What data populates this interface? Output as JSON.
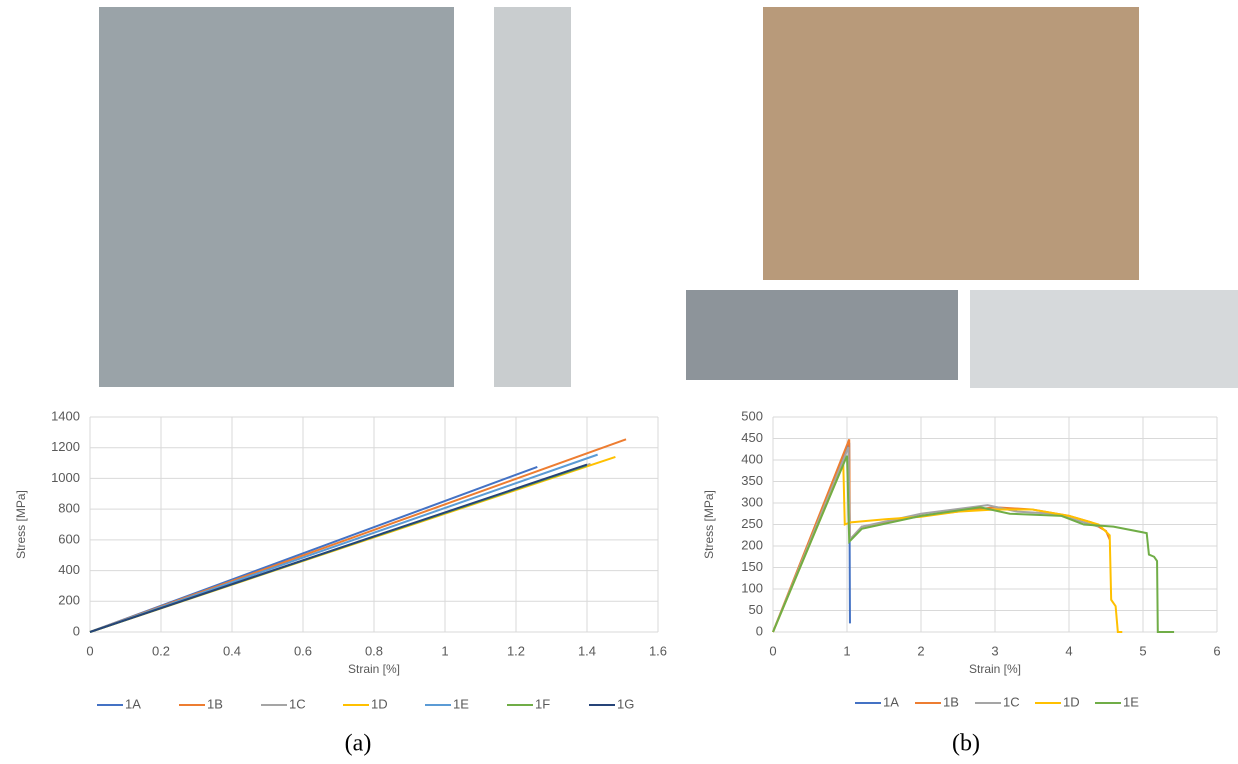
{
  "chart_data": [
    {
      "type": "line",
      "x_label": "Strain [%]",
      "y_label": "Stress [MPa]",
      "xlim": [
        0,
        1.6
      ],
      "xticks": [
        0,
        0.2,
        0.4,
        0.6,
        0.8,
        1,
        1.2,
        1.4,
        1.6
      ],
      "ylim": [
        0,
        1400
      ],
      "yticks": [
        0,
        200,
        400,
        600,
        800,
        1000,
        1200,
        1400
      ],
      "grid": true,
      "series": [
        {
          "name": "1A",
          "color": "#4472c4",
          "x": [
            0,
            1.26
          ],
          "values": [
            0,
            1075
          ]
        },
        {
          "name": "1B",
          "color": "#ed7d31",
          "x": [
            0,
            1.51
          ],
          "values": [
            0,
            1255
          ]
        },
        {
          "name": "1C",
          "color": "#a5a5a5",
          "x": [
            0,
            1.41
          ],
          "values": [
            0,
            1095
          ]
        },
        {
          "name": "1D",
          "color": "#ffc000",
          "x": [
            0,
            1.48
          ],
          "values": [
            0,
            1140
          ]
        },
        {
          "name": "1E",
          "color": "#5b9bd5",
          "x": [
            0,
            1.43
          ],
          "values": [
            0,
            1155
          ]
        },
        {
          "name": "1F",
          "color": "#70ad47",
          "x": [
            0,
            1.4
          ],
          "values": [
            0,
            1085
          ]
        },
        {
          "name": "1G",
          "color": "#264478",
          "x": [
            0,
            1.4
          ],
          "values": [
            0,
            1090
          ]
        }
      ]
    },
    {
      "type": "line",
      "x_label": "Strain [%]",
      "y_label": "Stress [MPa]",
      "xlim": [
        0,
        6
      ],
      "xticks": [
        0,
        1,
        2,
        3,
        4,
        5,
        6
      ],
      "ylim": [
        0,
        500
      ],
      "yticks": [
        0,
        50,
        100,
        150,
        200,
        250,
        300,
        350,
        400,
        450,
        500
      ],
      "grid": true,
      "series": [
        {
          "name": "1A",
          "color": "#4472c4",
          "x": [
            0,
            1.03,
            1.04
          ],
          "values": [
            0,
            440,
            20
          ]
        },
        {
          "name": "1B",
          "color": "#ed7d31",
          "x": [
            0,
            1.03,
            1.04,
            1.2,
            2,
            3,
            3.5,
            4,
            4.3,
            4.5,
            4.55
          ],
          "values": [
            0,
            448,
            215,
            245,
            270,
            290,
            285,
            270,
            255,
            235,
            215
          ]
        },
        {
          "name": "1C",
          "color": "#a5a5a5",
          "x": [
            0,
            1.02,
            1.04,
            1.2,
            2,
            2.9,
            3.3,
            3.8,
            4.2,
            4.4
          ],
          "values": [
            0,
            430,
            215,
            245,
            275,
            295,
            280,
            275,
            255,
            245
          ]
        },
        {
          "name": "1D",
          "color": "#ffc000",
          "x": [
            0,
            0.95,
            0.97,
            1.05,
            1.5,
            2,
            2.5,
            3,
            3.5,
            4,
            4.4,
            4.55,
            4.57,
            4.63,
            4.66,
            4.72
          ],
          "values": [
            0,
            390,
            250,
            255,
            262,
            268,
            280,
            285,
            285,
            270,
            250,
            225,
            75,
            60,
            0,
            0
          ]
        },
        {
          "name": "1E",
          "color": "#70ad47",
          "x": [
            0,
            1,
            1.03,
            1.2,
            2,
            2.8,
            3.2,
            3.9,
            4.2,
            4.6,
            5.05,
            5.08,
            5.15,
            5.19,
            5.2,
            5.42
          ],
          "values": [
            0,
            410,
            210,
            240,
            270,
            290,
            275,
            270,
            250,
            245,
            230,
            180,
            175,
            165,
            0,
            0
          ]
        }
      ]
    }
  ],
  "panel_labels": [
    "(a)",
    "(b)"
  ]
}
